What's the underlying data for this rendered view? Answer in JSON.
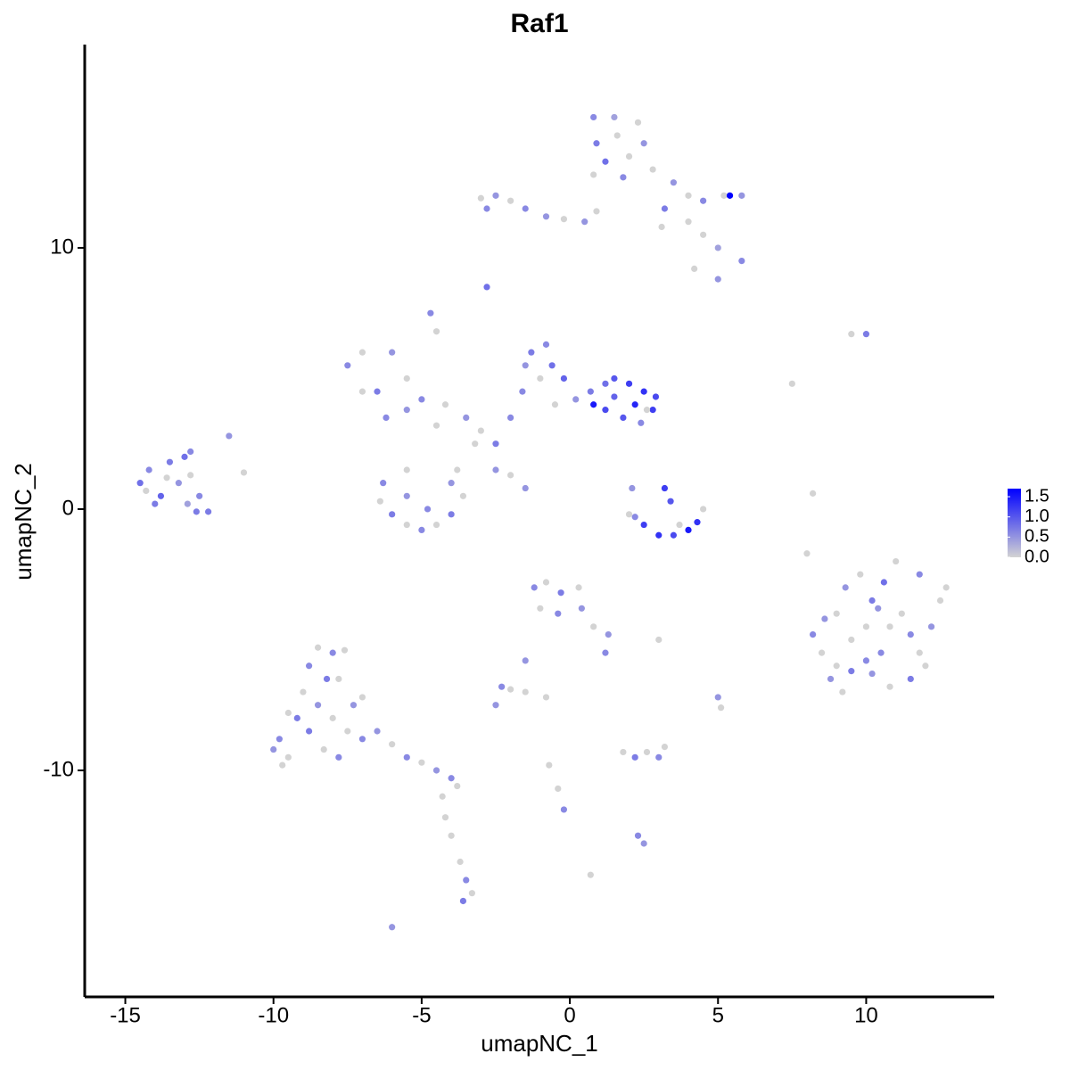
{
  "chart_data": {
    "type": "scatter",
    "title": "Raf1",
    "x_label": "umapNC_1",
    "y_label": "umapNC_2",
    "xlim": [
      -16.37,
      14.32
    ],
    "ylim": [
      -18.67,
      17.78
    ],
    "xticks": [
      -15,
      -10,
      -5,
      0,
      5,
      10
    ],
    "yticks": [
      -10,
      0,
      10
    ],
    "colorbar": {
      "lim": [
        0,
        1.7
      ],
      "ticks": [
        {
          "value": 0,
          "label": "0.0"
        },
        0.5,
        {
          "value": 1,
          "label": "1.0"
        },
        1.5
      ],
      "colors": [
        "#d3d3d3",
        "#0000ff"
      ]
    },
    "x": [
      -14.5,
      -14.2,
      -13.8,
      -13.5,
      -13.2,
      -13.0,
      -12.8,
      -12.5,
      -14.0,
      -13.6,
      -12.9,
      -12.2,
      -11.5,
      -12.8,
      -14.3,
      0.8,
      1.5,
      2.3,
      0.9,
      1.6,
      2.5,
      1.2,
      2.0,
      0.8,
      1.8,
      2.8,
      3.5,
      4,
      4.5,
      5.2,
      5.4,
      5.8,
      3.2,
      4,
      4.5,
      5,
      5.8,
      5,
      4.2,
      3.1,
      -3.0,
      -2.5,
      -2.8,
      -2,
      -1.5,
      -0.8,
      -0.2,
      0.5,
      0.9,
      -2.8,
      -1.3,
      -0.8,
      -1.5,
      -0.6,
      -1.0,
      -0.2,
      -1.6,
      0.2,
      -0.5,
      0.7,
      1.2,
      -2,
      1.5,
      2,
      2.5,
      1.5,
      2.2,
      2.8,
      1.8,
      2.4,
      1.2,
      2.9,
      0.8,
      2.6,
      -2.5,
      -3,
      -3.5,
      -4.2,
      -5,
      -4.5,
      -5.5,
      -6.2,
      -7,
      -7.5,
      -7,
      -6,
      -5.5,
      -6.5,
      -4.7,
      -4.5,
      -3.2,
      -2.5,
      -6.3,
      -6.4,
      -6,
      -5.5,
      -5,
      -4.5,
      -4,
      -3.6,
      -4,
      -5.5,
      -4.8,
      -5.5,
      -3.8,
      -1.5,
      -2,
      2.5,
      3,
      3.5,
      4,
      4.3,
      2.2,
      3.2,
      3.4,
      2.1,
      4.5,
      2,
      3.7,
      8.2,
      8.5,
      8.8,
      9.2,
      9.5,
      9,
      9.3,
      9.8,
      10.2,
      10,
      10.5,
      10.8,
      11.5,
      11.8,
      12.2,
      12.5,
      11.8,
      11,
      10.6,
      11.2,
      10.4,
      9.5,
      11.5,
      12,
      10.2,
      9,
      10.8,
      12.7,
      8.6,
      10.0,
      -1.2,
      -0.8,
      -0.3,
      0.3,
      -1,
      -0.4,
      0.4,
      0.8,
      1.3,
      1.2,
      -1.5,
      -2.3,
      -2,
      -1.5,
      -2.5,
      -0.8,
      2.2,
      2.6,
      3,
      3.2,
      1.8,
      2.3,
      2.5,
      3,
      5,
      5.1,
      -0.7,
      -0.4,
      -0.2,
      0.7,
      -9.8,
      -9.5,
      -9.2,
      -9,
      -8.8,
      -8.5,
      -8.2,
      -8.5,
      -8,
      -8.8,
      -8.3,
      -7.8,
      -7.5,
      -7.3,
      -7.8,
      -9.7,
      -7,
      -9.5,
      -8,
      -7.6,
      -10,
      -7,
      -6.5,
      -6,
      -5.5,
      -5,
      -4.5,
      -4,
      -3.8,
      -4.3,
      -4.2,
      -4,
      -3.7,
      -3.5,
      -3.6,
      -3.3,
      -6,
      10,
      9.5,
      7.5,
      8.2,
      8,
      -11,
      -12.6
    ],
    "y": [
      1.0,
      1.5,
      0.5,
      1.8,
      1.0,
      2.0,
      1.3,
      0.5,
      0.2,
      1.2,
      0.2,
      -0.1,
      2.8,
      2.2,
      0.7,
      15,
      15,
      14.8,
      14,
      14.3,
      14,
      13.3,
      13.5,
      12.8,
      12.7,
      13,
      12.5,
      12,
      11.8,
      12,
      12,
      12,
      11.5,
      11,
      10.5,
      10,
      9.5,
      8.8,
      9.2,
      10.8,
      11.9,
      12,
      11.5,
      11.8,
      11.5,
      11.2,
      11.1,
      11,
      11.4,
      8.5,
      6,
      6.3,
      5.5,
      5.5,
      5,
      5,
      4.5,
      4.2,
      4.0,
      4.5,
      3.8,
      3.5,
      5,
      4.8,
      4.5,
      4.3,
      4,
      3.8,
      3.5,
      3.3,
      4.8,
      4.3,
      4.0,
      3.8,
      2.5,
      3,
      3.5,
      4,
      4.2,
      3.2,
      3.8,
      3.5,
      4.5,
      5.5,
      6,
      6,
      5,
      4.5,
      7.5,
      6.8,
      2.5,
      1.5,
      1.0,
      0.3,
      -0.2,
      -0.6,
      -0.8,
      -0.6,
      -0.2,
      0.5,
      1.0,
      1.5,
      0,
      0.5,
      1.5,
      0.8,
      1.3,
      -0.6,
      -1,
      -1,
      -0.8,
      -0.5,
      -0.3,
      0.8,
      0.3,
      0.8,
      0,
      -0.2,
      -0.6,
      -4.8,
      -5.5,
      -6.5,
      -7,
      -6.2,
      -4,
      -3,
      -2.5,
      -3.5,
      -4.5,
      -5.5,
      -6.8,
      -6.5,
      -5.5,
      -4.5,
      -3.5,
      -2.5,
      -2,
      -2.8,
      -4,
      -3.8,
      -5,
      -4.8,
      -6,
      -6.3,
      -6,
      -4.5,
      -3,
      -4.2,
      -5.8,
      -3,
      -2.8,
      -3.2,
      -3,
      -3.8,
      -4,
      -3.8,
      -4.5,
      -4.8,
      -5.5,
      -5.8,
      -6.8,
      -6.9,
      -7.0,
      -7.5,
      -7.2,
      -9.5,
      -9.3,
      -9.5,
      -9.1,
      -9.3,
      -12.5,
      -12.8,
      -5,
      -7.2,
      -7.6,
      -9.8,
      -10.7,
      -11.5,
      -14,
      -8.8,
      -9.5,
      -8,
      -7,
      -6,
      -5.3,
      -6.5,
      -7.5,
      -8,
      -8.5,
      -9.2,
      -9.5,
      -8.5,
      -7.5,
      -6.5,
      -9.8,
      -8.8,
      -7.8,
      -5.5,
      -5.4,
      -9.2,
      -7.2,
      -8.5,
      -9,
      -9.5,
      -9.7,
      -10,
      -10.3,
      -10.6,
      -11,
      -11.8,
      -12.5,
      -13.5,
      -14.2,
      -15,
      -14.7,
      -16,
      6.7,
      6.7,
      4.8,
      0.6,
      -1.7,
      1.4,
      -0.1
    ],
    "values": [
      0.8,
      0.6,
      0.9,
      0.7,
      0.5,
      0.8,
      0,
      0.6,
      0.7,
      0,
      0.4,
      0.7,
      0.5,
      0.6,
      0,
      0.6,
      0.4,
      0,
      0.7,
      0,
      0.5,
      0.8,
      0,
      0,
      0.6,
      0,
      0.5,
      0,
      0.6,
      0,
      1.7,
      0.5,
      0.7,
      0,
      0,
      0.4,
      0.6,
      0.5,
      0,
      0,
      0,
      0.5,
      0.6,
      0,
      0.6,
      0.5,
      0,
      0.5,
      0,
      0.8,
      0.7,
      0.6,
      0.5,
      0.8,
      0,
      0.9,
      0.6,
      0.5,
      0,
      0.7,
      1.1,
      0.6,
      1.0,
      1.2,
      1.3,
      0.9,
      1.4,
      1.2,
      1.0,
      0.6,
      0.8,
      1.1,
      1.5,
      0,
      0.7,
      0,
      0.5,
      0,
      0.6,
      0,
      0.5,
      0.6,
      0,
      0.6,
      0,
      0.5,
      0,
      0.7,
      0.6,
      0,
      0,
      0.5,
      0.6,
      0,
      0.7,
      0,
      0.6,
      0,
      0.7,
      0,
      0.5,
      0,
      0.6,
      0.5,
      0,
      0.5,
      0,
      1.2,
      1.3,
      1.1,
      1.5,
      1.3,
      0.6,
      1.2,
      1.0,
      0.5,
      0,
      0,
      0,
      0.6,
      0,
      0.5,
      0,
      0.7,
      0,
      0.5,
      0,
      0.7,
      0,
      0.6,
      0,
      0.7,
      0,
      0.5,
      0,
      0.6,
      0,
      0.8,
      0,
      0.5,
      0,
      0.6,
      0,
      0.5,
      0,
      0,
      0,
      0.5,
      0.6,
      0.6,
      0,
      0.7,
      0,
      0,
      0.6,
      0.5,
      0,
      0.5,
      0.6,
      0.5,
      0.6,
      0,
      0,
      0.5,
      0,
      0.7,
      0,
      0.6,
      0,
      0,
      0.6,
      0.5,
      0,
      0.5,
      0,
      0,
      0,
      0.6,
      0,
      0.6,
      0,
      0.7,
      0,
      0.6,
      0,
      0.7,
      0.5,
      0,
      0.7,
      0,
      0.6,
      0,
      0.5,
      0,
      0,
      0.6,
      0,
      0.6,
      0,
      0.5,
      0,
      0.5,
      0,
      0.6,
      0,
      0.5,
      0.6,
      0,
      0,
      0,
      0,
      0,
      0.6,
      0.7,
      0,
      0.5,
      0.7,
      0,
      0,
      0,
      0,
      0,
      0.7
    ]
  }
}
